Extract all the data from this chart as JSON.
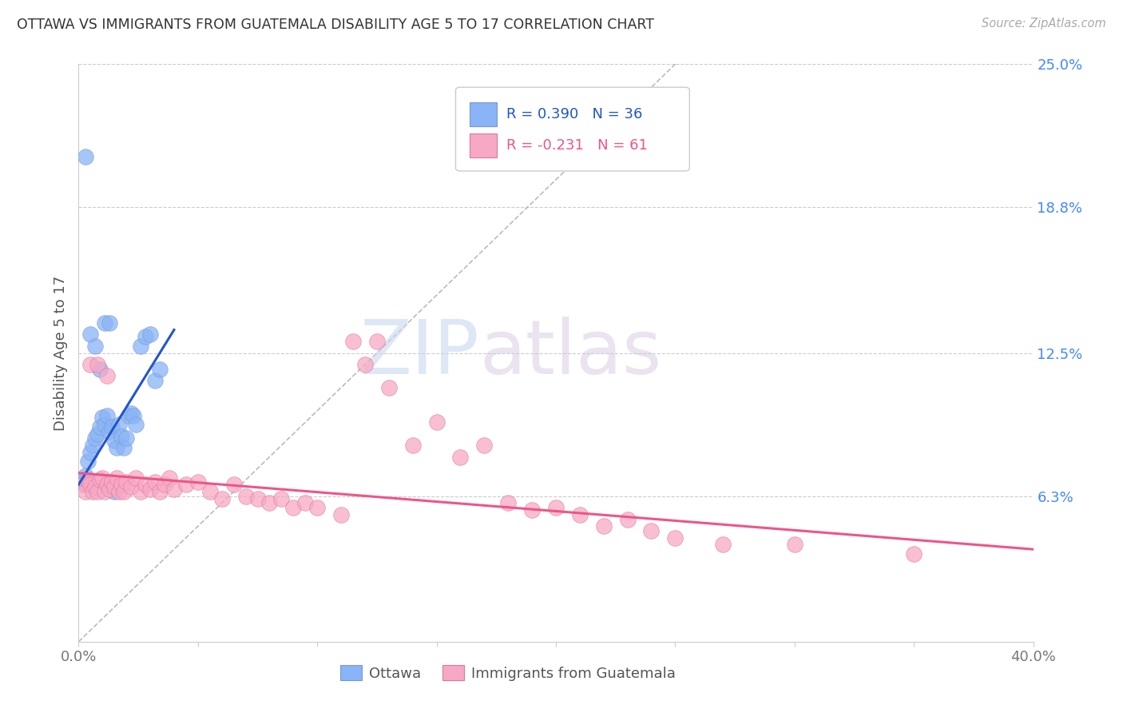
{
  "title": "OTTAWA VS IMMIGRANTS FROM GUATEMALA DISABILITY AGE 5 TO 17 CORRELATION CHART",
  "source": "Source: ZipAtlas.com",
  "ylabel": "Disability Age 5 to 17",
  "xlim": [
    0.0,
    0.4
  ],
  "ylim": [
    0.0,
    0.25
  ],
  "ytick_values_right": [
    0.063,
    0.125,
    0.188,
    0.25
  ],
  "ytick_labels_right": [
    "6.3%",
    "12.5%",
    "18.8%",
    "25.0%"
  ],
  "hline_values": [
    0.063,
    0.125,
    0.188,
    0.25
  ],
  "legend_label1": "Ottawa",
  "legend_label2": "Immigrants from Guatemala",
  "watermark_zip": "ZIP",
  "watermark_atlas": "atlas",
  "blue_color": "#89b4f7",
  "pink_color": "#f7a8c4",
  "blue_line_color": "#2255cc",
  "pink_line_color": "#ee5588",
  "right_label_color": "#4488ff",
  "ottawa_x": [
    0.003,
    0.004,
    0.005,
    0.006,
    0.007,
    0.008,
    0.009,
    0.01,
    0.011,
    0.012,
    0.013,
    0.014,
    0.015,
    0.016,
    0.017,
    0.018,
    0.019,
    0.02,
    0.021,
    0.022,
    0.023,
    0.024,
    0.026,
    0.028,
    0.03,
    0.032,
    0.034,
    0.002,
    0.003,
    0.005,
    0.007,
    0.009,
    0.011,
    0.013,
    0.015,
    0.003
  ],
  "ottawa_y": [
    0.072,
    0.078,
    0.082,
    0.085,
    0.088,
    0.09,
    0.093,
    0.097,
    0.094,
    0.098,
    0.091,
    0.093,
    0.087,
    0.084,
    0.094,
    0.089,
    0.084,
    0.088,
    0.098,
    0.099,
    0.098,
    0.094,
    0.128,
    0.132,
    0.133,
    0.113,
    0.118,
    0.07,
    0.068,
    0.133,
    0.128,
    0.118,
    0.138,
    0.138,
    0.065,
    0.21
  ],
  "guatemala_x": [
    0.002,
    0.003,
    0.004,
    0.005,
    0.006,
    0.007,
    0.008,
    0.009,
    0.01,
    0.011,
    0.012,
    0.013,
    0.014,
    0.015,
    0.016,
    0.017,
    0.018,
    0.019,
    0.02,
    0.022,
    0.024,
    0.026,
    0.028,
    0.03,
    0.032,
    0.034,
    0.036,
    0.038,
    0.04,
    0.045,
    0.05,
    0.055,
    0.06,
    0.065,
    0.07,
    0.075,
    0.08,
    0.085,
    0.09,
    0.095,
    0.1,
    0.11,
    0.115,
    0.12,
    0.125,
    0.13,
    0.14,
    0.15,
    0.16,
    0.17,
    0.18,
    0.19,
    0.2,
    0.21,
    0.22,
    0.23,
    0.24,
    0.25,
    0.27,
    0.3,
    0.35,
    0.005,
    0.008,
    0.012
  ],
  "guatemala_y": [
    0.068,
    0.065,
    0.07,
    0.068,
    0.065,
    0.067,
    0.065,
    0.07,
    0.071,
    0.065,
    0.068,
    0.066,
    0.069,
    0.067,
    0.071,
    0.065,
    0.068,
    0.065,
    0.069,
    0.067,
    0.071,
    0.065,
    0.068,
    0.066,
    0.069,
    0.065,
    0.068,
    0.071,
    0.066,
    0.068,
    0.069,
    0.065,
    0.062,
    0.068,
    0.063,
    0.062,
    0.06,
    0.062,
    0.058,
    0.06,
    0.058,
    0.055,
    0.13,
    0.12,
    0.13,
    0.11,
    0.085,
    0.095,
    0.08,
    0.085,
    0.06,
    0.057,
    0.058,
    0.055,
    0.05,
    0.053,
    0.048,
    0.045,
    0.042,
    0.042,
    0.038,
    0.12,
    0.12,
    0.115
  ],
  "blue_trend_x": [
    0.0,
    0.04
  ],
  "blue_trend_y": [
    0.068,
    0.135
  ],
  "pink_trend_x": [
    0.0,
    0.4
  ],
  "pink_trend_y": [
    0.073,
    0.04
  ]
}
